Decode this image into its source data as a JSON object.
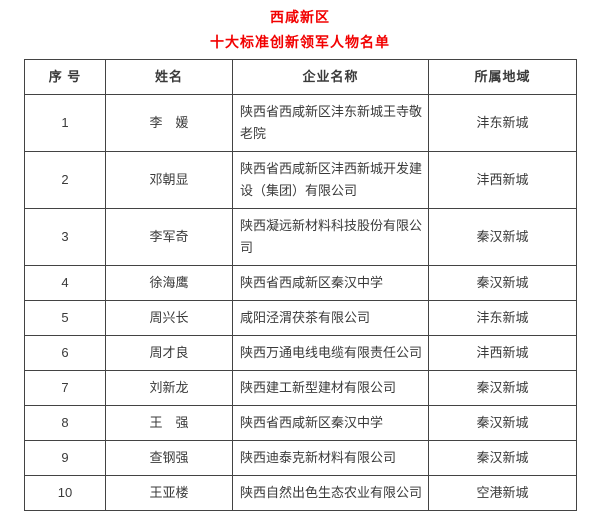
{
  "page": {
    "title": "西咸新区",
    "subtitle": "十大标准创新领军人物名单",
    "accent_color": "#f20000"
  },
  "table": {
    "columns": [
      "序 号",
      "姓名",
      "企业名称",
      "所属地域"
    ],
    "rows": [
      {
        "no": "1",
        "name": "李　媛",
        "company": "陕西省西咸新区沣东新城王寺敬老院",
        "region": "沣东新城"
      },
      {
        "no": "2",
        "name": "邓朝显",
        "company": "陕西省西咸新区沣西新城开发建设（集团）有限公司",
        "region": "沣西新城"
      },
      {
        "no": "3",
        "name": "李军奇",
        "company": "陕西凝远新材料科技股份有限公司",
        "region": "秦汉新城"
      },
      {
        "no": "4",
        "name": "徐海鹰",
        "company": "陕西省西咸新区秦汉中学",
        "region": "秦汉新城"
      },
      {
        "no": "5",
        "name": "周兴长",
        "company": "咸阳泾渭茯茶有限公司",
        "region": "沣东新城"
      },
      {
        "no": "6",
        "name": "周才良",
        "company": "陕西万通电线电缆有限责任公司",
        "region": "沣西新城"
      },
      {
        "no": "7",
        "name": "刘新龙",
        "company": "陕西建工新型建材有限公司",
        "region": "秦汉新城"
      },
      {
        "no": "8",
        "name": "王　强",
        "company": "陕西省西咸新区秦汉中学",
        "region": "秦汉新城"
      },
      {
        "no": "9",
        "name": "查钢强",
        "company": "陕西迪泰克新材料有限公司",
        "region": "秦汉新城"
      },
      {
        "no": "10",
        "name": "王亚楼",
        "company": "陕西自然出色生态农业有限公司",
        "region": "空港新城"
      }
    ]
  }
}
